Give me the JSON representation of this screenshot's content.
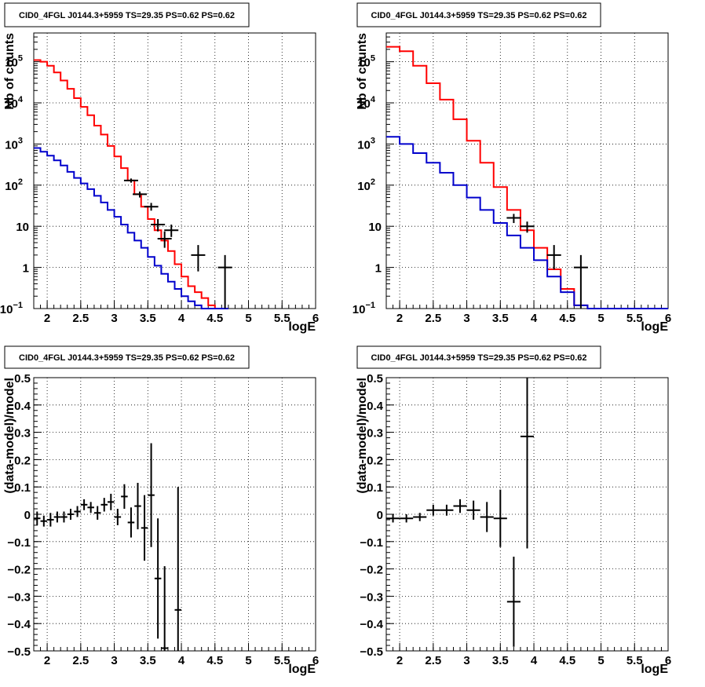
{
  "panels": [
    {
      "id": "p1",
      "title": "CID0_4FGL J0144.3+5959 TS=29.35 PS=0.62 PS=0.62",
      "xlabel": "logE",
      "ylabel": "Nb of counts",
      "type": "counts",
      "log_y": true,
      "xlim": [
        1.8,
        6.0
      ],
      "ylim": [
        0.1,
        500000
      ],
      "xticks": [
        "2",
        "2.5",
        "3",
        "3.5",
        "4",
        "4.5",
        "5",
        "5.5",
        "6"
      ],
      "yticks": [
        "10",
        "1",
        "10",
        "10",
        "10",
        "10",
        "10",
        "1",
        "10"
      ]
    },
    {
      "id": "p2",
      "title": "CID0_4FGL J0144.3+5959 TS=29.35 PS=0.62 PS=0.62",
      "xlabel": "logE",
      "ylabel": "Nb of counts",
      "type": "counts",
      "log_y": true,
      "xlim": [
        1.8,
        6.0
      ],
      "ylim": [
        0.1,
        500000
      ],
      "xticks": [
        "2",
        "2.5",
        "3",
        "3.5",
        "4",
        "4.5",
        "5",
        "5.5",
        "6"
      ]
    },
    {
      "id": "p3",
      "title": "CID0_4FGL J0144.3+5959 TS=29.35 PS=0.62 PS=0.62",
      "xlabel": "logE",
      "ylabel": "(data-model)/model",
      "type": "residual",
      "log_y": false,
      "xlim": [
        1.8,
        6.0
      ],
      "ylim": [
        -0.5,
        0.5
      ],
      "xticks": [
        "2",
        "2.5",
        "3",
        "3.5",
        "4",
        "4.5",
        "5",
        "5.5",
        "6"
      ],
      "yticks": [
        "0.5",
        "0.4",
        "0.3",
        "0.2",
        "0.1",
        "0",
        "−0.1",
        "−0.2",
        "−0.3",
        "−0.4",
        "−0.5"
      ]
    },
    {
      "id": "p4",
      "title": "CID0_4FGL J0144.3+5959 TS=29.35 PS=0.62 PS=0.62",
      "xlabel": "logE",
      "ylabel": "(data-model)/model",
      "type": "residual",
      "log_y": false,
      "xlim": [
        1.8,
        6.0
      ],
      "ylim": [
        -0.5,
        0.5
      ],
      "xticks": [
        "2",
        "2.5",
        "3",
        "3.5",
        "4",
        "4.5",
        "5",
        "5.5",
        "6"
      ],
      "yticks": [
        "0.5",
        "0.4",
        "0.3",
        "0.2",
        "0.1",
        "0",
        "−0.1",
        "−0.2",
        "−0.3",
        "−0.4",
        "−0.5"
      ]
    }
  ],
  "colors": {
    "model": "#ff0000",
    "background": "#0000cc",
    "data": "#000000",
    "grid": "#000000"
  },
  "chart_data": [
    {
      "type": "line",
      "log_y": true,
      "xlim": [
        1.8,
        6.0
      ],
      "ylim": [
        0.1,
        500000
      ],
      "xlabel": "logE",
      "ylabel": "Nb of counts",
      "bin_edges": [
        1.8,
        1.9,
        2.0,
        2.1,
        2.2,
        2.3,
        2.4,
        2.5,
        2.6,
        2.7,
        2.8,
        2.9,
        3.0,
        3.1,
        3.2,
        3.3,
        3.4,
        3.5,
        3.6,
        3.7,
        3.8,
        3.9,
        4.0,
        4.1,
        4.2,
        4.3,
        4.4,
        4.5,
        4.6,
        4.7,
        6.0
      ],
      "series": [
        {
          "values": [
            110000,
            100000,
            80000,
            55000,
            35000,
            22000,
            13000,
            8000,
            5000,
            2800,
            1700,
            900,
            500,
            260,
            130,
            60,
            30,
            15,
            8,
            4.5,
            2.5,
            1.2,
            0.6,
            0.35,
            0.25,
            0.18,
            0.12,
            0.1,
            0.1
          ]
        },
        {
          "values": [
            800,
            650,
            520,
            400,
            300,
            210,
            150,
            110,
            80,
            55,
            38,
            25,
            17,
            11,
            7,
            4.5,
            3,
            1.8,
            1.1,
            0.7,
            0.45,
            0.3,
            0.2,
            0.15,
            0.12,
            0.1,
            0.1,
            0.1,
            0.1
          ]
        }
      ],
      "points": [
        {
          "x": 3.25,
          "y": 130,
          "lo": 115,
          "hi": 145
        },
        {
          "x": 3.38,
          "y": 60,
          "lo": 50,
          "hi": 70
        },
        {
          "x": 3.55,
          "y": 30,
          "lo": 24,
          "hi": 37
        },
        {
          "x": 3.65,
          "y": 11,
          "lo": 7.5,
          "hi": 15
        },
        {
          "x": 3.75,
          "y": 5,
          "lo": 3,
          "hi": 7.5
        },
        {
          "x": 3.85,
          "y": 8,
          "lo": 5.5,
          "hi": 11
        },
        {
          "x": 4.25,
          "y": 2,
          "lo": 0.8,
          "hi": 3.5
        },
        {
          "x": 4.65,
          "y": 1,
          "lo": 0.1,
          "hi": 2.0
        }
      ]
    },
    {
      "type": "line",
      "log_y": true,
      "xlim": [
        1.8,
        6.0
      ],
      "ylim": [
        0.1,
        500000
      ],
      "xlabel": "logE",
      "ylabel": "Nb of counts",
      "bin_edges": [
        1.8,
        2.0,
        2.2,
        2.4,
        2.6,
        2.8,
        3.0,
        3.2,
        3.4,
        3.6,
        3.8,
        4.0,
        4.2,
        4.4,
        4.6,
        4.8,
        6.0
      ],
      "series": [
        {
          "values": [
            230000,
            180000,
            80000,
            30000,
            12000,
            4000,
            1200,
            350,
            90,
            25,
            8,
            3,
            0.9,
            0.3,
            0.12,
            0.1
          ]
        },
        {
          "values": [
            1500,
            1000,
            600,
            350,
            200,
            100,
            50,
            25,
            12,
            6,
            3,
            1.5,
            0.6,
            0.25,
            0.12,
            0.1
          ]
        }
      ],
      "points": [
        {
          "x": 3.7,
          "y": 16,
          "lo": 12,
          "hi": 20
        },
        {
          "x": 3.9,
          "y": 10,
          "lo": 7,
          "hi": 13
        },
        {
          "x": 4.3,
          "y": 2,
          "lo": 0.9,
          "hi": 3.5
        },
        {
          "x": 4.7,
          "y": 1,
          "lo": 0.1,
          "hi": 2.0
        }
      ]
    },
    {
      "type": "scatter",
      "xlim": [
        1.8,
        6.0
      ],
      "ylim": [
        -0.5,
        0.5
      ],
      "xlabel": "logE",
      "ylabel": "(data-model)/model",
      "points": [
        {
          "x": 1.85,
          "y": -0.015,
          "ex": 0.05,
          "ey": 0.025
        },
        {
          "x": 1.95,
          "y": -0.025,
          "ex": 0.05,
          "ey": 0.02
        },
        {
          "x": 2.05,
          "y": -0.02,
          "ex": 0.05,
          "ey": 0.025
        },
        {
          "x": 2.15,
          "y": -0.01,
          "ex": 0.05,
          "ey": 0.02
        },
        {
          "x": 2.25,
          "y": -0.01,
          "ex": 0.05,
          "ey": 0.02
        },
        {
          "x": 2.35,
          "y": 0.0,
          "ex": 0.05,
          "ey": 0.02
        },
        {
          "x": 2.45,
          "y": 0.01,
          "ex": 0.05,
          "ey": 0.02
        },
        {
          "x": 2.55,
          "y": 0.035,
          "ex": 0.05,
          "ey": 0.02
        },
        {
          "x": 2.65,
          "y": 0.025,
          "ex": 0.05,
          "ey": 0.02
        },
        {
          "x": 2.75,
          "y": 0.005,
          "ex": 0.05,
          "ey": 0.025
        },
        {
          "x": 2.85,
          "y": 0.035,
          "ex": 0.05,
          "ey": 0.025
        },
        {
          "x": 2.95,
          "y": 0.045,
          "ex": 0.05,
          "ey": 0.03
        },
        {
          "x": 3.05,
          "y": -0.01,
          "ex": 0.05,
          "ey": 0.03
        },
        {
          "x": 3.15,
          "y": 0.065,
          "ex": 0.05,
          "ey": 0.045
        },
        {
          "x": 3.25,
          "y": -0.03,
          "ex": 0.05,
          "ey": 0.055
        },
        {
          "x": 3.35,
          "y": 0.03,
          "ex": 0.05,
          "ey": 0.085
        },
        {
          "x": 3.45,
          "y": -0.05,
          "ex": 0.05,
          "ey": 0.12
        },
        {
          "x": 3.55,
          "y": 0.07,
          "ex": 0.05,
          "ey": 0.19
        },
        {
          "x": 3.65,
          "y": -0.235,
          "ex": 0.05,
          "ey": 0.22
        },
        {
          "x": 3.75,
          "y": -0.49,
          "ex": 0.05,
          "ey": 0.3
        },
        {
          "x": 3.95,
          "y": -0.35,
          "ex": 0.05,
          "ey": 0.45
        }
      ]
    },
    {
      "type": "scatter",
      "xlim": [
        1.8,
        6.0
      ],
      "ylim": [
        -0.5,
        0.5
      ],
      "xlabel": "logE",
      "ylabel": "(data-model)/model",
      "points": [
        {
          "x": 1.9,
          "y": -0.015,
          "ex": 0.1,
          "ey": 0.015
        },
        {
          "x": 2.1,
          "y": -0.015,
          "ex": 0.1,
          "ey": 0.015
        },
        {
          "x": 2.3,
          "y": -0.01,
          "ex": 0.1,
          "ey": 0.015
        },
        {
          "x": 2.5,
          "y": 0.015,
          "ex": 0.1,
          "ey": 0.02
        },
        {
          "x": 2.7,
          "y": 0.015,
          "ex": 0.1,
          "ey": 0.02
        },
        {
          "x": 2.9,
          "y": 0.03,
          "ex": 0.1,
          "ey": 0.025
        },
        {
          "x": 3.1,
          "y": 0.015,
          "ex": 0.1,
          "ey": 0.035
        },
        {
          "x": 3.3,
          "y": -0.01,
          "ex": 0.1,
          "ey": 0.055
        },
        {
          "x": 3.5,
          "y": -0.015,
          "ex": 0.1,
          "ey": 0.105
        },
        {
          "x": 3.7,
          "y": -0.32,
          "ex": 0.1,
          "ey": 0.165
        },
        {
          "x": 3.9,
          "y": 0.285,
          "ex": 0.1,
          "ey": 0.41
        }
      ]
    }
  ]
}
